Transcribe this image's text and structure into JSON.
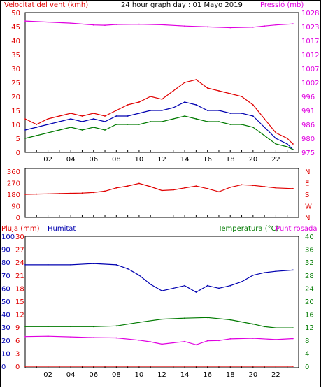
{
  "header": {
    "left": "Velocitat del vent (kmh)",
    "center": "24 hour graph day : 01 Mayo 2019",
    "right": "Pressió (mb)"
  },
  "colors": {
    "red": "#e00000",
    "blue": "#0000b0",
    "green": "#007a00",
    "magenta": "#e000e0",
    "axis": "#000000"
  },
  "x_ticks": [
    "02",
    "04",
    "06",
    "08",
    "10",
    "12",
    "14",
    "16",
    "18",
    "20",
    "22"
  ],
  "chart_data": [
    {
      "type": "line",
      "id": "wind",
      "title": "24 hour graph day : 01 Mayo 2019",
      "ylabel": "Velocitat del vent (kmh)",
      "y2label": "Pressió (mb)",
      "ylim": [
        0,
        50
      ],
      "y_ticks": [
        0,
        5,
        10,
        15,
        20,
        25,
        30,
        35,
        40,
        45,
        50
      ],
      "y2_ticks": [
        975,
        980,
        986,
        991,
        996,
        1002,
        1007,
        1012,
        1017,
        1023,
        1028
      ],
      "y2lim": [
        975,
        1028
      ],
      "xlim": [
        0,
        24
      ],
      "series": [
        {
          "color": "red",
          "axis": "left",
          "x": [
            0,
            1,
            2,
            3,
            4,
            5,
            6,
            7,
            8,
            9,
            10,
            11,
            12,
            13,
            14,
            15,
            16,
            17,
            18,
            19,
            20,
            21,
            22,
            23,
            23.5
          ],
          "values": [
            12,
            10,
            12,
            13,
            14,
            13,
            14,
            13,
            15,
            17,
            18,
            20,
            19,
            22,
            25,
            26,
            23,
            22,
            21,
            20,
            17,
            12,
            7,
            5,
            3
          ]
        },
        {
          "color": "blue",
          "axis": "left",
          "x": [
            0,
            1,
            2,
            3,
            4,
            5,
            6,
            7,
            8,
            9,
            10,
            11,
            12,
            13,
            14,
            15,
            16,
            17,
            18,
            19,
            20,
            21,
            22,
            23,
            23.5
          ],
          "values": [
            8,
            9,
            10,
            11,
            12,
            11,
            12,
            11,
            13,
            13,
            14,
            15,
            15,
            16,
            18,
            17,
            15,
            15,
            14,
            14,
            13,
            9,
            5,
            3,
            1
          ]
        },
        {
          "color": "green",
          "axis": "left",
          "x": [
            0,
            1,
            2,
            3,
            4,
            5,
            6,
            7,
            8,
            9,
            10,
            11,
            12,
            13,
            14,
            15,
            16,
            17,
            18,
            19,
            20,
            21,
            22,
            23,
            23.5
          ],
          "values": [
            5,
            6,
            7,
            8,
            9,
            8,
            9,
            8,
            10,
            10,
            10,
            11,
            11,
            12,
            13,
            12,
            11,
            11,
            10,
            10,
            9,
            6,
            3,
            2,
            1
          ]
        },
        {
          "color": "magenta",
          "axis": "right",
          "x": [
            0,
            2,
            4,
            6,
            7,
            8,
            10,
            12,
            14,
            16,
            18,
            20,
            21,
            22,
            23.5
          ],
          "values": [
            1024.8,
            1024.4,
            1024.0,
            1023.3,
            1023.2,
            1023.5,
            1023.6,
            1023.4,
            1022.9,
            1022.6,
            1022.3,
            1022.5,
            1022.9,
            1023.3,
            1023.7
          ]
        }
      ]
    },
    {
      "type": "line",
      "id": "direction",
      "ylim": [
        0,
        360
      ],
      "y_ticks": [
        0,
        90,
        180,
        270,
        360
      ],
      "y2_ticks": [
        "N",
        "W",
        "S",
        "E",
        "N"
      ],
      "xlim": [
        0,
        24
      ],
      "series": [
        {
          "color": "red",
          "x": [
            0,
            1,
            2,
            3,
            4,
            5,
            6,
            7,
            8,
            9,
            10,
            11,
            12,
            13,
            14,
            15,
            16,
            17,
            18,
            19,
            20,
            21,
            22,
            23.5
          ],
          "values": [
            180,
            182,
            184,
            186,
            188,
            190,
            195,
            205,
            230,
            245,
            265,
            240,
            210,
            215,
            230,
            245,
            225,
            200,
            235,
            255,
            250,
            240,
            230,
            225
          ]
        }
      ]
    },
    {
      "type": "line",
      "id": "humidity",
      "left_labels": [
        "Pluja (mm)",
        "Humitat"
      ],
      "right_labels": [
        "Temperatura (°C)",
        "Punt rosada"
      ],
      "ylim": [
        0,
        100
      ],
      "y_ticks": [
        0,
        10,
        20,
        30,
        40,
        50,
        60,
        70,
        80,
        90,
        100
      ],
      "y_ticks_mm": [
        0,
        3,
        6,
        9,
        12,
        15,
        18,
        21,
        24,
        27,
        30
      ],
      "y2_ticks": [
        0,
        4,
        8,
        12,
        16,
        20,
        24,
        28,
        32,
        36,
        40
      ],
      "y2lim": [
        0,
        40
      ],
      "xlim": [
        0,
        24
      ],
      "series": [
        {
          "color": "blue",
          "axis": "left",
          "x": [
            0,
            2,
            4,
            6,
            8,
            9,
            10,
            11,
            12,
            13,
            14,
            15,
            16,
            17,
            18,
            19,
            20,
            21,
            22,
            23.5
          ],
          "values": [
            78,
            78,
            78,
            79,
            78,
            75,
            70,
            63,
            58,
            60,
            62,
            57,
            62,
            60,
            62,
            65,
            70,
            72,
            73,
            74
          ]
        },
        {
          "color": "green",
          "axis": "right",
          "x": [
            0,
            2,
            4,
            6,
            8,
            10,
            12,
            14,
            16,
            18,
            20,
            21,
            22,
            23.5
          ],
          "values": [
            12.2,
            12.2,
            12.2,
            12.2,
            12.4,
            13.5,
            14.5,
            14.8,
            15.0,
            14.3,
            13.0,
            12.2,
            11.8,
            11.8
          ]
        },
        {
          "color": "magenta",
          "axis": "right",
          "x": [
            0,
            2,
            4,
            6,
            8,
            10,
            11,
            12,
            13,
            14,
            15,
            16,
            17,
            18,
            20,
            22,
            23.5
          ],
          "values": [
            9.1,
            9.2,
            9.0,
            8.8,
            8.7,
            8.0,
            7.5,
            6.8,
            7.2,
            7.6,
            6.6,
            7.8,
            7.9,
            8.4,
            8.6,
            8.2,
            8.5
          ]
        },
        {
          "color": "red",
          "axis": "left",
          "x": [
            0,
            23.5
          ],
          "values": [
            0,
            0
          ]
        }
      ]
    }
  ]
}
